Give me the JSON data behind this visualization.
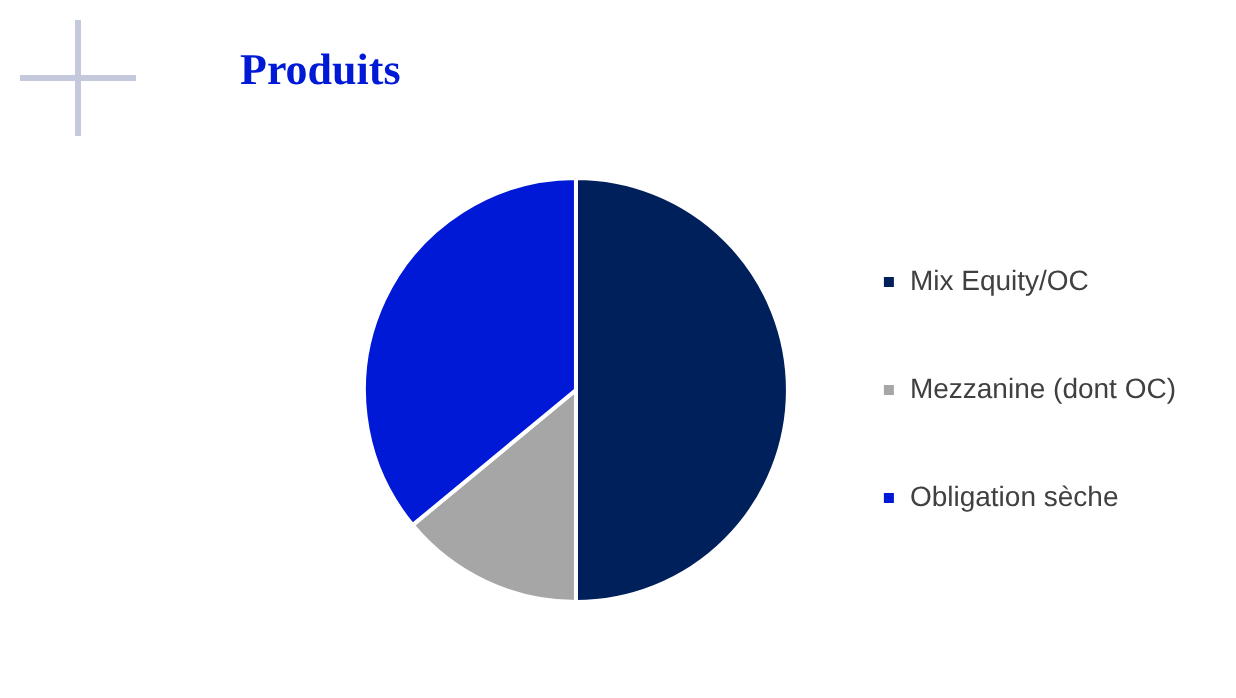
{
  "chart_data": {
    "type": "pie",
    "title": "Produits",
    "categories": [
      "Mix Equity/OC",
      "Mezzanine (dont OC)",
      "Obligation sèche"
    ],
    "values": [
      50,
      14,
      36
    ],
    "colors": [
      "#00205b",
      "#a6a6a6",
      "#0019d6"
    ],
    "legend": "right"
  }
}
